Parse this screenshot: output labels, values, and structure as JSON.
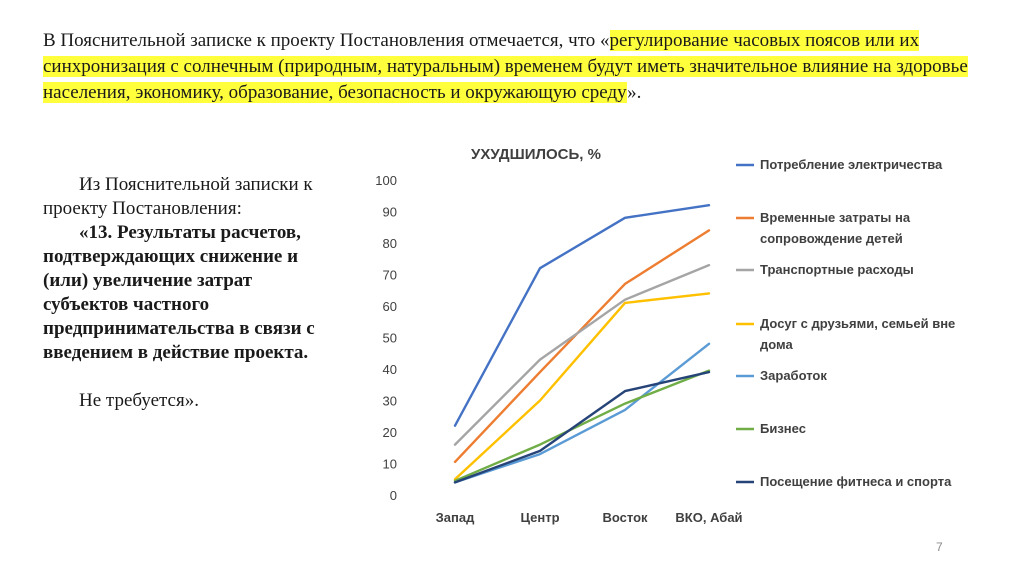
{
  "intro": {
    "lead": "В  Пояснительной записке к проекту Постановления отмечается, что «",
    "highlight": "регулирование часовых поясов или их синхронизация с солнечным (природным, натуральным) временем будут иметь значительное влияние на здоровье населения, экономику, образование, безопасность и окружающую среду",
    "tail": "».",
    "highlight_color": "#ffff3b"
  },
  "note": {
    "intro": "Из Пояснительной записки к проекту Постановления:",
    "quote": "«13. Результаты расчетов, подтверждающих снижение и (или) увеличение затрат субъектов частного предпринимательства в связи с введением в действие проекта.",
    "closing": "Не требуется»."
  },
  "chart_data": {
    "type": "line",
    "title": "УХУДШИЛОСЬ, %",
    "categories": [
      "Запад",
      "Центр",
      "Восток",
      "ВКО, Абай"
    ],
    "ylim": [
      0,
      100
    ],
    "yticks": [
      0,
      10,
      20,
      30,
      40,
      50,
      60,
      70,
      80,
      90,
      100
    ],
    "grid": false,
    "legend_position": "right",
    "series": [
      {
        "name": "Потребление электричества",
        "color": "#4472c4",
        "values": [
          22,
          72,
          88,
          92
        ]
      },
      {
        "name": "Временные затраты на сопровождение детей",
        "color": "#ed7d31",
        "values": [
          10.5,
          39,
          67,
          84
        ]
      },
      {
        "name": "Транспортные  расходы",
        "color": "#a5a5a5",
        "values": [
          16,
          43,
          62,
          73
        ]
      },
      {
        "name": "Досуг с друзьями, семьей вне дома",
        "color": "#ffc000",
        "values": [
          5,
          30,
          61,
          64
        ]
      },
      {
        "name": "Заработок",
        "color": "#5b9bd5",
        "values": [
          4,
          13,
          27,
          48
        ]
      },
      {
        "name": "Бизнес",
        "color": "#70ad47",
        "values": [
          4.5,
          16,
          29,
          39.5
        ]
      },
      {
        "name": "Посещение фитнеса и спорта",
        "color": "#264478",
        "values": [
          4,
          14,
          33,
          39
        ]
      }
    ]
  },
  "page": {
    "number": "7"
  }
}
